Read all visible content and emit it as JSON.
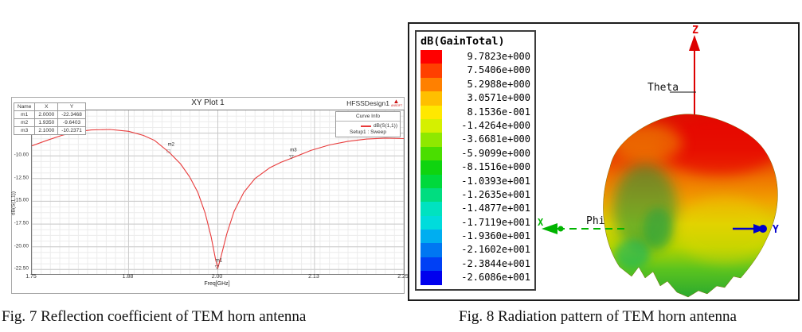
{
  "chart_data": [
    {
      "type": "line",
      "title": "XY Plot 1",
      "design_label": "HFSSDesign1",
      "logo_text": "ANSOFT",
      "xlabel": "Freq[GHz]",
      "ylabel": "dB(S(1,1))",
      "xlim": [
        1.75,
        2.25
      ],
      "ylim": [
        -23.0,
        -5.0
      ],
      "grid": true,
      "legend_position": "top-right",
      "legend": {
        "title": "Curve Info",
        "series_label": "dB(S(1,1))",
        "series_sublabel": "Setup1 : Sweep"
      },
      "x_ticks": {
        "values": [
          1.75,
          1.88,
          2.0,
          2.13,
          2.25
        ],
        "labels": [
          "1.75",
          "1.88",
          "2.00",
          "2.13",
          "2.25"
        ]
      },
      "y_ticks": {
        "values": [
          -7.5,
          -10.0,
          -12.5,
          -15.0,
          -17.5,
          -20.0,
          -22.5
        ],
        "labels": [
          "-7.50",
          "-10.00",
          "-12.50",
          "-15.00",
          "-17.50",
          "-20.00",
          "-22.50"
        ]
      },
      "minor_x_step": 0.0125,
      "minor_y_step": 0.625,
      "series": [
        {
          "name": "dB(S(1,1))",
          "setup": "Setup1 : Sweep",
          "color": "#e83a3a",
          "points": [
            [
              1.75,
              -8.9
            ],
            [
              1.77,
              -8.3
            ],
            [
              1.79,
              -7.75
            ],
            [
              1.81,
              -7.35
            ],
            [
              1.83,
              -7.15
            ],
            [
              1.855,
              -7.1
            ],
            [
              1.88,
              -7.3
            ],
            [
              1.9,
              -7.75
            ],
            [
              1.915,
              -8.3
            ],
            [
              1.935,
              -9.6403
            ],
            [
              1.95,
              -10.9
            ],
            [
              1.962,
              -12.3
            ],
            [
              1.973,
              -14.0
            ],
            [
              1.983,
              -16.3
            ],
            [
              1.991,
              -18.9
            ],
            [
              1.997,
              -21.4
            ],
            [
              2.0,
              -22.3468
            ],
            [
              2.004,
              -21.2
            ],
            [
              2.012,
              -18.6
            ],
            [
              2.022,
              -16.1
            ],
            [
              2.035,
              -14.0
            ],
            [
              2.05,
              -12.5
            ],
            [
              2.07,
              -11.3
            ],
            [
              2.085,
              -10.7
            ],
            [
              2.1,
              -10.2371
            ],
            [
              2.125,
              -9.4
            ],
            [
              2.15,
              -8.8
            ],
            [
              2.175,
              -8.4
            ],
            [
              2.2,
              -8.15
            ],
            [
              2.225,
              -8.05
            ],
            [
              2.25,
              -8.1
            ]
          ]
        }
      ],
      "markers": [
        {
          "name": "m1",
          "x": 2.0,
          "y": -22.3468,
          "symbol": "▽"
        },
        {
          "name": "m2",
          "x": 1.935,
          "y": -9.6403,
          "symbol": "□"
        },
        {
          "name": "m3",
          "x": 2.1,
          "y": -10.2371,
          "symbol": "▽"
        }
      ],
      "marker_table": {
        "headers": [
          "Name",
          "X",
          "Y"
        ],
        "rows": [
          [
            "m1",
            "2.0000",
            "-22.3468"
          ],
          [
            "m2",
            "1.9350",
            "-9.6403"
          ],
          [
            "m3",
            "2.1000",
            "-10.2371"
          ]
        ]
      }
    },
    {
      "type": "table",
      "title": "dB(GainTotal)",
      "note": "color scale of 3D radiation pattern",
      "values": [
        "9.7823e+000",
        "7.5406e+000",
        "5.2988e+000",
        "3.0571e+000",
        "8.1536e-001",
        "-1.4264e+000",
        "-3.6681e+000",
        "-5.9099e+000",
        "-8.1516e+000",
        "-1.0393e+001",
        "-1.2635e+001",
        "-1.4877e+001",
        "-1.7119e+001",
        "-1.9360e+001",
        "-2.1602e+001",
        "-2.3844e+001",
        "-2.6086e+001"
      ]
    }
  ],
  "fig7": {
    "caption": "Fig. 7 Reflection coefficient of TEM horn antenna"
  },
  "fig8": {
    "caption": "Fig. 8 Radiation pattern of TEM horn antenna",
    "legend": {
      "title": "dB(GainTotal)",
      "entries": [
        {
          "value": "9.7823e+000",
          "color": "#ff0000"
        },
        {
          "value": "7.5406e+000",
          "color": "#ff4000"
        },
        {
          "value": "5.2988e+000",
          "color": "#ff8000"
        },
        {
          "value": "3.0571e+000",
          "color": "#ffbf00"
        },
        {
          "value": "8.1536e-001",
          "color": "#ffe800"
        },
        {
          "value": "-1.4264e+000",
          "color": "#d5f000"
        },
        {
          "value": "-3.6681e+000",
          "color": "#8fe800"
        },
        {
          "value": "-5.9099e+000",
          "color": "#4ade00"
        },
        {
          "value": "-8.1516e+000",
          "color": "#0fd40f"
        },
        {
          "value": "-1.0393e+001",
          "color": "#00d93c"
        },
        {
          "value": "-1.2635e+001",
          "color": "#00dd80"
        },
        {
          "value": "-1.4877e+001",
          "color": "#00e2c0"
        },
        {
          "value": "-1.7119e+001",
          "color": "#00dcdc"
        },
        {
          "value": "-1.9360e+001",
          "color": "#00aef0"
        },
        {
          "value": "-2.1602e+001",
          "color": "#0077f2"
        },
        {
          "value": "-2.3844e+001",
          "color": "#0040f5"
        },
        {
          "value": "-2.6086e+001",
          "color": "#0000ee"
        }
      ]
    },
    "axis_labels": {
      "z": "Z",
      "theta": "Theta",
      "phi": "Phi",
      "x": "X",
      "y": "Y"
    },
    "axis_colors": {
      "z": "#dd0000",
      "phi_x": "#00b400",
      "y": "#0000cc",
      "text": "#111111"
    }
  }
}
